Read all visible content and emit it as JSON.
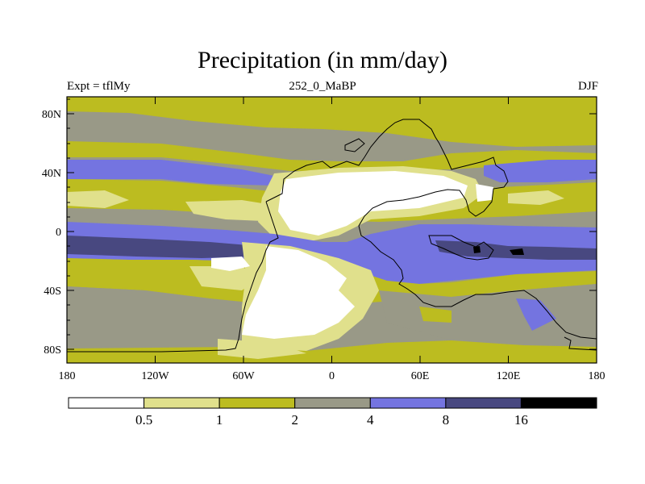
{
  "title": "Precipitation (in mm/day)",
  "subtitle_left": "Expt = tflMy",
  "subtitle_center": "252_0_MaBP",
  "subtitle_right": "DJF",
  "map": {
    "lat_ticks": [
      "80N",
      "40N",
      "0",
      "40S",
      "80S"
    ],
    "lon_ticks": [
      "180",
      "120W",
      "60W",
      "0",
      "60E",
      "120E",
      "180"
    ],
    "colors": {
      "lt05": "#ffffff",
      "c05_1": "#e0e08c",
      "c1_2": "#bcbc20",
      "c2_4": "#999987",
      "c4_8": "#7474e0",
      "c8_16": "#484880",
      "gt16": "#000000"
    }
  },
  "colorbar": {
    "labels": [
      "0.5",
      "1",
      "2",
      "4",
      "8",
      "16"
    ],
    "bins": [
      "#ffffff",
      "#e0e08c",
      "#bcbc20",
      "#999987",
      "#7474e0",
      "#484880",
      "#000000"
    ]
  }
}
